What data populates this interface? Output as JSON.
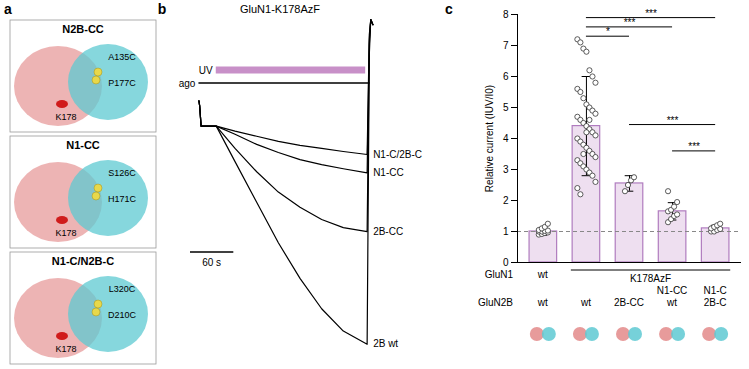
{
  "panel_a": {
    "letter": "a",
    "structures": [
      {
        "title": "N2B-CC",
        "labels": [
          "A135C",
          "P177C",
          "K178"
        ]
      },
      {
        "title": "N1-CC",
        "labels": [
          "S126C",
          "H171C",
          "K178"
        ]
      },
      {
        "title": "N1-C/N2B-C",
        "labels": [
          "L320C",
          "D210C",
          "K178"
        ]
      }
    ]
  },
  "chart_data": [
    {
      "letter": "b",
      "type": "line",
      "title": "GluN1-K178AzF",
      "tick_labels": false,
      "xlim": [
        -20,
        300
      ],
      "ylim": [
        -3.3,
        0.1
      ],
      "stimuli": [
        {
          "label": "UV",
          "start": 24,
          "end": 231,
          "color": "#c890c8"
        },
        {
          "label": "ago",
          "start": 0,
          "end": 237,
          "color": "#000000"
        }
      ],
      "scale_bar": {
        "value": 60,
        "label": "60 s"
      },
      "x": [
        0,
        1,
        3,
        24,
        50,
        80,
        110,
        140,
        170,
        200,
        233,
        236,
        238,
        241
      ],
      "series": [
        {
          "name": "2B wt",
          "color": "#000000",
          "values": [
            -0.75,
            -0.8,
            -1.0,
            -1.0,
            -1.35,
            -1.75,
            -2.15,
            -2.5,
            -2.8,
            -3.02,
            -3.15,
            -0.3,
            0.05,
            0
          ]
        },
        {
          "name": "2B-CC",
          "color": "#000000",
          "values": [
            -0.75,
            -0.8,
            -1.0,
            -1.0,
            -1.22,
            -1.45,
            -1.65,
            -1.8,
            -1.92,
            -2.0,
            -2.04,
            -0.2,
            0.05,
            0
          ]
        },
        {
          "name": "N1-CC",
          "color": "#000000",
          "values": [
            -0.75,
            -0.8,
            -1.0,
            -1.0,
            -1.08,
            -1.18,
            -1.26,
            -1.33,
            -1.38,
            -1.42,
            -1.46,
            -0.15,
            0.05,
            0
          ]
        },
        {
          "name": "N1-C/2B-C",
          "color": "#000000",
          "values": [
            -0.75,
            -0.8,
            -1.0,
            -1.0,
            -1.05,
            -1.1,
            -1.15,
            -1.19,
            -1.22,
            -1.25,
            -1.28,
            -0.1,
            0.05,
            0
          ]
        }
      ]
    },
    {
      "letter": "c",
      "type": "bar",
      "y_label": "Relative current (IUV/I0)",
      "ylim": [
        0,
        8
      ],
      "yticks": [
        0,
        1,
        2,
        3,
        4,
        5,
        6,
        7,
        8
      ],
      "color": "#eedff0",
      "reference_line": 1,
      "values": [
        1.0,
        4.4,
        2.55,
        1.65,
        1.1
      ],
      "error": [
        0.12,
        1.6,
        0.25,
        0.28,
        0.1
      ],
      "points": [
        [
          0.9,
          0.92,
          0.95,
          0.97,
          1.0,
          1.0,
          1.02,
          1.03,
          1.05,
          1.1,
          1.15,
          1.25
        ],
        [
          7.2,
          7.1,
          6.9,
          6.8,
          6.2,
          6.0,
          5.8,
          5.6,
          5.5,
          5.3,
          5.1,
          5.0,
          4.9,
          4.8,
          4.7,
          4.6,
          4.5,
          4.4,
          4.3,
          4.2,
          4.1,
          4.0,
          3.9,
          3.8,
          3.7,
          3.6,
          3.5,
          3.4,
          3.3,
          3.2,
          3.1,
          3.0,
          2.9,
          2.8,
          2.6,
          2.4,
          2.2,
          3.5,
          4.2,
          4.6
        ],
        [
          2.3,
          2.5,
          2.65,
          2.75
        ],
        [
          1.3,
          1.4,
          1.5,
          1.55,
          1.65,
          1.7,
          1.8,
          1.95,
          2.3
        ],
        [
          1.0,
          1.0,
          1.05,
          1.08,
          1.1,
          1.15,
          1.2,
          1.25
        ]
      ],
      "x_rows": [
        {
          "name": "GluN1",
          "labels": [
            "wt",
            null,
            null,
            "N1-CC",
            "N1-C"
          ]
        },
        {
          "name": "GluN2B",
          "labels": [
            "wt",
            "wt",
            "2B-CC",
            "wt",
            "2B-C"
          ]
        }
      ],
      "x_bracket": {
        "label": "K178AzF",
        "from": 1,
        "to": 4
      },
      "significance": [
        {
          "from": 1,
          "to": 2,
          "y": 7.3,
          "label": "*"
        },
        {
          "from": 1,
          "to": 3,
          "y": 7.6,
          "label": "***"
        },
        {
          "from": 1,
          "to": 4,
          "y": 7.9,
          "label": "***"
        },
        {
          "from": 2,
          "to": 4,
          "y": 4.45,
          "label": "***"
        },
        {
          "from": 3,
          "to": 4,
          "y": 3.6,
          "label": "***"
        }
      ]
    }
  ]
}
